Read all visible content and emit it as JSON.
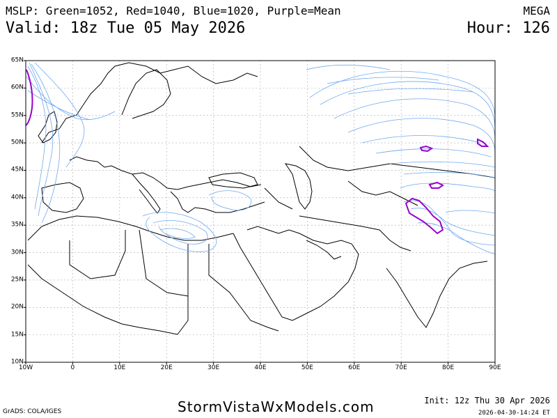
{
  "header": {
    "legend_line": "MSLP: Green=1052, Red=1040, Blue=1020, Purple=Mean",
    "valid_line": "Valid: 18z Tue 05 May 2026",
    "model": "MEGA",
    "hour": "Hour: 126"
  },
  "axes": {
    "lat_labels": [
      "65N",
      "60N",
      "55N",
      "50N",
      "45N",
      "40N",
      "35N",
      "30N",
      "25N",
      "20N",
      "15N",
      "10N"
    ],
    "lon_labels": [
      "10W",
      "0",
      "10E",
      "20E",
      "30E",
      "40E",
      "50E",
      "60E",
      "70E",
      "80E",
      "90E"
    ]
  },
  "footer": {
    "grads": "GrADS: COLA/IGES",
    "site": "StormVistaWxModels.com",
    "init": "Init: 12z Thu 30 Apr 2026",
    "stamp": "2026-04-30-14:24 ET"
  },
  "colors": {
    "blue_contour": "#6fa8f0",
    "purple_mean": "#9900cc",
    "coastline": "#000000",
    "grid": "#aaaaaa"
  }
}
